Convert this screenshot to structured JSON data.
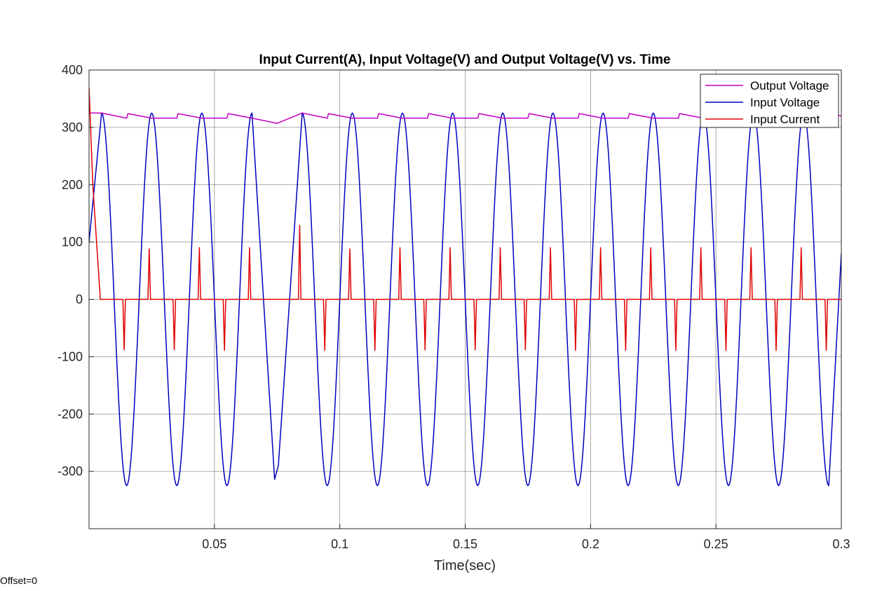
{
  "chart_data": {
    "type": "line",
    "title": "Input Current(A), Input Voltage(V) and Output Voltage(V) vs. Time",
    "xlabel": "Time(sec)",
    "ylabel": "",
    "xlim": [
      0,
      0.3
    ],
    "ylim": [
      -400,
      400
    ],
    "xticks": [
      0.05,
      0.1,
      0.15,
      0.2,
      0.25,
      0.3
    ],
    "xtick_labels": [
      "0.05",
      "0.1",
      "0.15",
      "0.2",
      "0.25",
      "0.3"
    ],
    "yticks": [
      -300,
      -200,
      -100,
      0,
      100,
      200,
      300,
      400
    ],
    "ytick_labels": [
      "-300",
      "-200",
      "-100",
      "0",
      "100",
      "200",
      "300",
      "400"
    ],
    "grid": true,
    "legend_position": "top-right",
    "series": [
      {
        "name": "Output Voltage",
        "color": "#c000c0",
        "x": [
          0,
          0.005,
          0.015,
          0.0155,
          0.025,
          0.035,
          0.0355,
          0.045,
          0.055,
          0.0555,
          0.065,
          0.075,
          0.085,
          0.095,
          0.0955,
          0.105,
          0.115,
          0.1155,
          0.125,
          0.135,
          0.1355,
          0.145,
          0.155,
          0.1555,
          0.165,
          0.175,
          0.1755,
          0.185,
          0.195,
          0.1955,
          0.205,
          0.215,
          0.2155,
          0.225,
          0.235,
          0.2355,
          0.245,
          0.255,
          0.2555,
          0.265,
          0.275,
          0.2755,
          0.285,
          0.295,
          0.2955,
          0.3
        ],
        "y": [
          325,
          325,
          316,
          324,
          316,
          316,
          324,
          316,
          316,
          324,
          316,
          307,
          325,
          316,
          324,
          316,
          316,
          324,
          316,
          316,
          324,
          316,
          316,
          324,
          316,
          316,
          324,
          316,
          316,
          324,
          316,
          316,
          324,
          316,
          316,
          324,
          316,
          316,
          324,
          316,
          316,
          324,
          316,
          316,
          324,
          320
        ]
      },
      {
        "name": "Input Voltage",
        "color": "#0000c0",
        "x": [
          0,
          0.005,
          0.015,
          0.025,
          0.035,
          0.045,
          0.055,
          0.065,
          0.074,
          0.0755,
          0.085,
          0.095,
          0.105,
          0.115,
          0.125,
          0.135,
          0.145,
          0.155,
          0.165,
          0.175,
          0.185,
          0.195,
          0.205,
          0.215,
          0.225,
          0.235,
          0.245,
          0.255,
          0.265,
          0.275,
          0.285,
          0.295,
          0.3
        ],
        "y": [
          100,
          325,
          -325,
          325,
          -325,
          325,
          -325,
          325,
          -314,
          -290,
          325,
          -325,
          325,
          -325,
          325,
          -325,
          325,
          -325,
          325,
          -325,
          325,
          -325,
          325,
          -325,
          325,
          -325,
          325,
          -325,
          325,
          -325,
          325,
          -325,
          80
        ]
      },
      {
        "name": "Input Current",
        "color": "#e00000",
        "x": [
          0,
          0.0015,
          0.0045,
          0.0135,
          0.014,
          0.0145,
          0.0155,
          0.0235,
          0.024,
          0.0245,
          0.0255,
          0.0335,
          0.034,
          0.0345,
          0.0355,
          0.0435,
          0.044,
          0.0445,
          0.0455,
          0.0535,
          0.054,
          0.0545,
          0.0555,
          0.0635,
          0.064,
          0.0645,
          0.0655,
          0.0835,
          0.084,
          0.0845,
          0.0855,
          0.0935,
          0.094,
          0.0945,
          0.0955,
          0.1035,
          0.104,
          0.1045,
          0.1055,
          0.1135,
          0.114,
          0.1145,
          0.1155,
          0.1235,
          0.124,
          0.1245,
          0.1255,
          0.1335,
          0.134,
          0.1345,
          0.1355,
          0.1435,
          0.144,
          0.1445,
          0.1455,
          0.1535,
          0.154,
          0.1545,
          0.1555,
          0.1635,
          0.164,
          0.1645,
          0.1655,
          0.1735,
          0.174,
          0.1745,
          0.1755,
          0.1835,
          0.184,
          0.1845,
          0.1855,
          0.1935,
          0.194,
          0.1945,
          0.1955,
          0.2035,
          0.204,
          0.2045,
          0.2055,
          0.2135,
          0.214,
          0.2145,
          0.2155,
          0.2235,
          0.224,
          0.2245,
          0.2255,
          0.2335,
          0.234,
          0.2345,
          0.2355,
          0.2435,
          0.244,
          0.2445,
          0.2455,
          0.2535,
          0.254,
          0.2545,
          0.2555,
          0.2635,
          0.264,
          0.2645,
          0.2655,
          0.2735,
          0.274,
          0.2745,
          0.2755,
          0.2835,
          0.284,
          0.2845,
          0.2855,
          0.2935,
          0.294,
          0.2945,
          0.2955,
          0.3
        ],
        "y": [
          370,
          200,
          0,
          0,
          -88,
          0,
          0,
          0,
          88,
          0,
          0,
          0,
          -88,
          0,
          0,
          0,
          90,
          0,
          0,
          0,
          -89,
          0,
          0,
          0,
          90,
          0,
          0,
          0,
          129,
          0,
          0,
          0,
          -89,
          0,
          0,
          0,
          88,
          0,
          0,
          0,
          -89,
          0,
          0,
          0,
          90,
          0,
          0,
          0,
          -88,
          0,
          0,
          0,
          90,
          0,
          0,
          0,
          -88,
          0,
          0,
          0,
          90,
          0,
          0,
          0,
          -88,
          0,
          0,
          0,
          90,
          0,
          0,
          0,
          -89,
          0,
          0,
          0,
          90,
          0,
          0,
          0,
          -89,
          0,
          0,
          0,
          90,
          0,
          0,
          0,
          -89,
          0,
          0,
          0,
          90,
          0,
          0,
          0,
          -89,
          0,
          0,
          0,
          90,
          0,
          0,
          0,
          -89,
          0,
          0,
          0,
          90,
          0,
          0,
          0,
          -89,
          0,
          0,
          0
        ]
      }
    ]
  },
  "footer": {
    "offset_text": "Offset=0"
  }
}
